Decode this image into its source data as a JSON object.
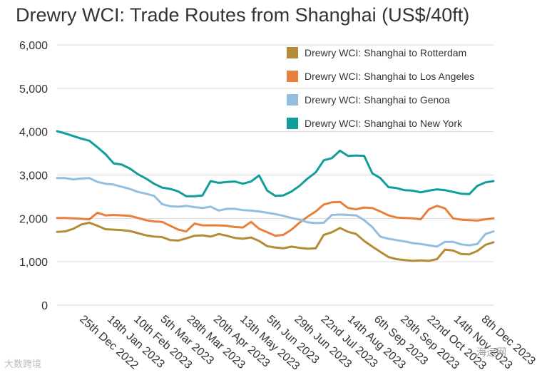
{
  "chart_data": {
    "type": "line",
    "title": "Drewry WCI: Trade Routes from Shanghai (US$/40ft)",
    "ylim": [
      0,
      6000
    ],
    "yticks": [
      "6,000",
      "5,000",
      "4,000",
      "3,000",
      "2,000",
      "1,000",
      "0"
    ],
    "ytick_values": [
      6000,
      5000,
      4000,
      3000,
      2000,
      1000,
      0
    ],
    "xlim": [
      "2022-12-01",
      "2023-12-14"
    ],
    "xtick_labels": [
      "25th Dec 2022",
      "18th Jan 2023",
      "10th Feb 2023",
      "5th Mar 2023",
      "28th Mar 2023",
      "20th Apr 2023",
      "13th May 2023",
      "5th Jun 2023",
      "29th Jun 2023",
      "22nd Jul 2023",
      "14th Aug 2023",
      "6th Sep 2023",
      "29th Sep 2023",
      "22nd Oct 2023",
      "14th Nov 2023",
      "8th Dec 2023"
    ],
    "xtick_dates": [
      "2022-12-25",
      "2023-01-18",
      "2023-02-10",
      "2023-03-05",
      "2023-03-28",
      "2023-04-20",
      "2023-05-13",
      "2023-06-05",
      "2023-06-29",
      "2023-07-22",
      "2023-08-14",
      "2023-09-06",
      "2023-09-29",
      "2023-10-22",
      "2023-11-14",
      "2023-12-08"
    ],
    "grid": "horizontal",
    "legend_position": "top-right",
    "x": [
      "2022-12-01",
      "2022-12-08",
      "2022-12-15",
      "2022-12-22",
      "2022-12-29",
      "2023-01-05",
      "2023-01-12",
      "2023-01-19",
      "2023-01-26",
      "2023-02-02",
      "2023-02-09",
      "2023-02-16",
      "2023-02-23",
      "2023-03-02",
      "2023-03-09",
      "2023-03-16",
      "2023-03-23",
      "2023-03-30",
      "2023-04-06",
      "2023-04-13",
      "2023-04-20",
      "2023-04-27",
      "2023-05-04",
      "2023-05-11",
      "2023-05-18",
      "2023-05-25",
      "2023-06-01",
      "2023-06-08",
      "2023-06-15",
      "2023-06-22",
      "2023-06-29",
      "2023-07-06",
      "2023-07-13",
      "2023-07-20",
      "2023-07-27",
      "2023-08-03",
      "2023-08-10",
      "2023-08-17",
      "2023-08-24",
      "2023-08-31",
      "2023-09-07",
      "2023-09-14",
      "2023-09-21",
      "2023-09-28",
      "2023-10-05",
      "2023-10-12",
      "2023-10-19",
      "2023-10-26",
      "2023-11-02",
      "2023-11-09",
      "2023-11-16",
      "2023-11-23",
      "2023-11-30",
      "2023-12-07",
      "2023-12-14"
    ],
    "series": [
      {
        "name": "Drewry WCI: Shanghai to Rotterdam",
        "color": "#b48c35",
        "values": [
          1690,
          1700,
          1760,
          1860,
          1900,
          1830,
          1750,
          1740,
          1730,
          1710,
          1660,
          1610,
          1580,
          1570,
          1500,
          1490,
          1540,
          1600,
          1610,
          1580,
          1640,
          1600,
          1550,
          1530,
          1560,
          1480,
          1360,
          1330,
          1310,
          1350,
          1320,
          1300,
          1310,
          1620,
          1680,
          1780,
          1690,
          1640,
          1480,
          1350,
          1230,
          1110,
          1060,
          1040,
          1020,
          1030,
          1020,
          1060,
          1280,
          1260,
          1180,
          1170,
          1250,
          1390,
          1450
        ]
      },
      {
        "name": "Drewry WCI: Shanghai to Los Angeles",
        "color": "#e8803d",
        "values": [
          2010,
          2010,
          2000,
          1990,
          1980,
          2130,
          2070,
          2080,
          2070,
          2060,
          2010,
          1960,
          1930,
          1920,
          1830,
          1740,
          1700,
          1880,
          1840,
          1840,
          1840,
          1830,
          1800,
          1790,
          1920,
          1760,
          1680,
          1600,
          1620,
          1740,
          1900,
          2040,
          2160,
          2320,
          2370,
          2380,
          2240,
          2210,
          2250,
          2240,
          2160,
          2070,
          2020,
          2010,
          2000,
          1980,
          2210,
          2290,
          2230,
          2000,
          1970,
          1960,
          1950,
          1980,
          2000
        ]
      },
      {
        "name": "Drewry WCI: Shanghai to Genoa",
        "color": "#92bfe0",
        "values": [
          2930,
          2930,
          2900,
          2920,
          2930,
          2840,
          2800,
          2780,
          2730,
          2680,
          2610,
          2570,
          2520,
          2330,
          2280,
          2270,
          2290,
          2260,
          2240,
          2270,
          2180,
          2220,
          2220,
          2190,
          2180,
          2160,
          2130,
          2100,
          2060,
          2010,
          1970,
          1910,
          1890,
          1900,
          2080,
          2090,
          2080,
          2070,
          1960,
          1800,
          1580,
          1530,
          1500,
          1470,
          1430,
          1410,
          1380,
          1350,
          1460,
          1460,
          1400,
          1380,
          1410,
          1640,
          1700
        ]
      },
      {
        "name": "Drewry WCI: Shanghai to New York",
        "color": "#119e9a",
        "values": [
          4010,
          3960,
          3900,
          3840,
          3790,
          3640,
          3480,
          3270,
          3240,
          3150,
          3020,
          2920,
          2800,
          2710,
          2680,
          2620,
          2510,
          2510,
          2530,
          2860,
          2820,
          2840,
          2850,
          2800,
          2850,
          2990,
          2640,
          2520,
          2530,
          2620,
          2750,
          2920,
          3060,
          3340,
          3390,
          3560,
          3440,
          3450,
          3440,
          3040,
          2930,
          2720,
          2700,
          2650,
          2640,
          2600,
          2640,
          2670,
          2650,
          2610,
          2570,
          2560,
          2750,
          2830,
          2860
        ]
      }
    ]
  },
  "watermark_left": "大数跨境",
  "watermark_right": "海运网"
}
